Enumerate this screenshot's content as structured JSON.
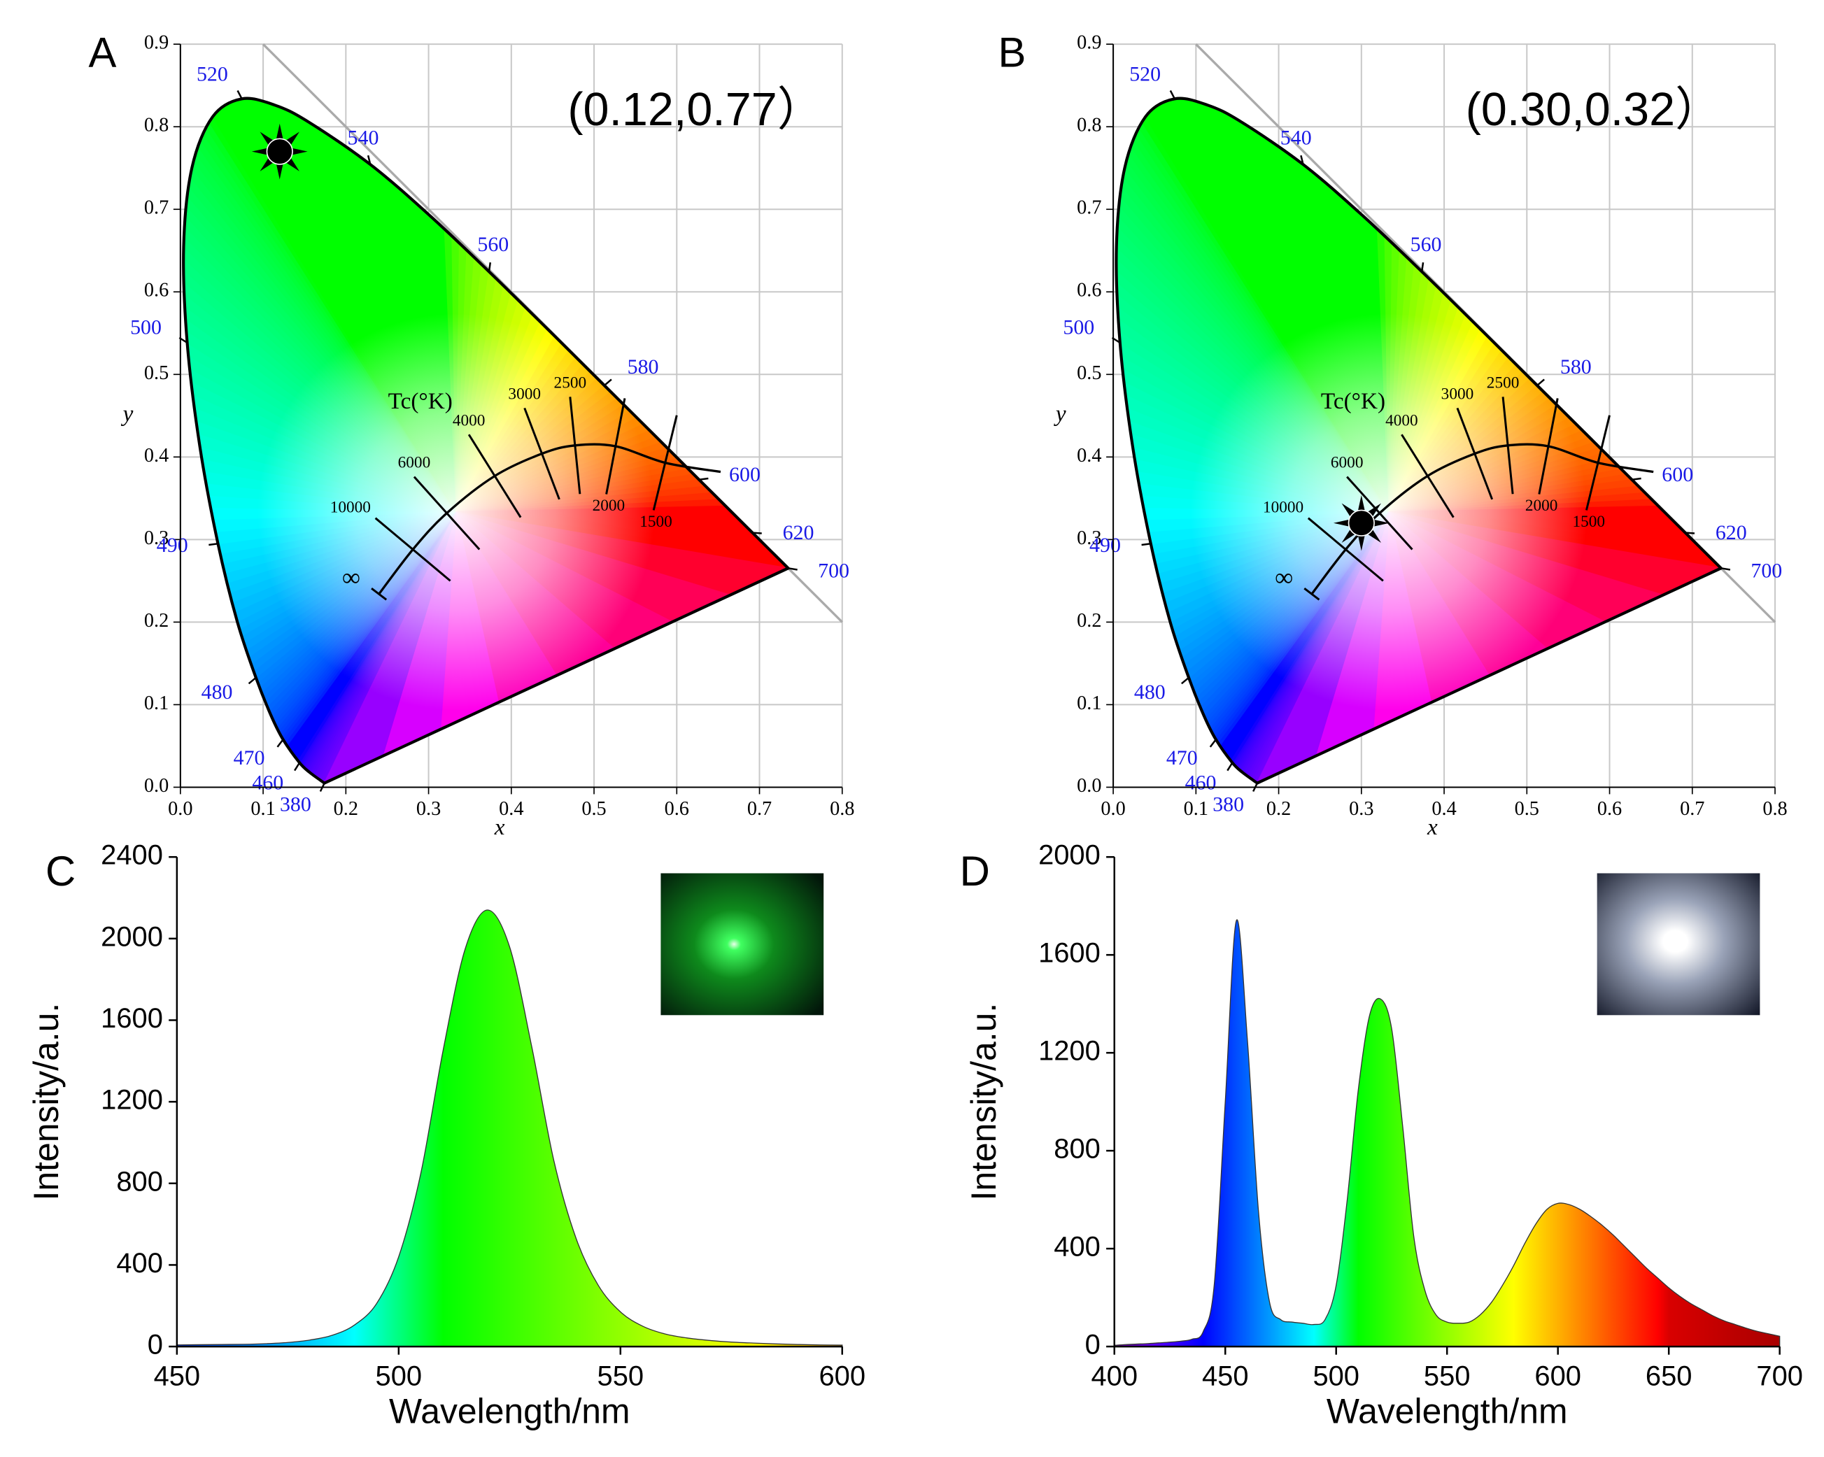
{
  "chart_data": [
    {
      "type": "cie",
      "label": "A",
      "annotation": "(0.12,0.77）",
      "xlabel": "x",
      "ylabel": "y",
      "xlim": [
        0,
        0.8
      ],
      "xticks": [
        {
          "value": 0,
          "label": "0.0"
        },
        0.1,
        0.2,
        0.3,
        0.4,
        0.5,
        0.6,
        0.7,
        0.8
      ],
      "ylim": [
        0,
        0.9
      ],
      "yticks": [
        {
          "value": 0,
          "label": "0.0"
        },
        0.1,
        0.2,
        0.3,
        0.4,
        0.5,
        0.6,
        0.7,
        0.8,
        0.9
      ],
      "grid": true,
      "locus": {
        "wavelengths": [
          380,
          null,
          460,
          470,
          null,
          480,
          null,
          490,
          null,
          500,
          null,
          null,
          null,
          520,
          null,
          null,
          540,
          null,
          560,
          null,
          580,
          null,
          600,
          620,
          null,
          700
        ],
        "x": [
          0.1741,
          0.1566,
          0.144,
          0.1241,
          0.1096,
          0.0913,
          0.0687,
          0.0454,
          0.0235,
          0.0082,
          0.0039,
          0.0139,
          0.0389,
          0.0743,
          0.1142,
          0.1547,
          0.2296,
          0.3016,
          0.3731,
          0.4441,
          0.5125,
          0.5752,
          0.627,
          0.6915,
          0.719,
          0.7347
        ],
        "y": [
          0.005,
          0.0177,
          0.0297,
          0.0578,
          0.0868,
          0.1327,
          0.2007,
          0.295,
          0.4127,
          0.5384,
          0.6548,
          0.7502,
          0.812,
          0.8338,
          0.8262,
          0.8059,
          0.7543,
          0.6923,
          0.6245,
          0.5547,
          0.4866,
          0.4242,
          0.3725,
          0.3083,
          0.2809,
          0.2653
        ]
      },
      "planck": {
        "title": "Tc(°K)",
        "labels": [
          "∞",
          "10000",
          "6000",
          "4000",
          "3000",
          "2500",
          "2000",
          "1500",
          null
        ],
        "x": [
          0.24,
          0.281,
          0.322,
          0.38,
          0.437,
          0.477,
          0.526,
          0.586,
          0.653
        ],
        "y": [
          0.234,
          0.288,
          0.332,
          0.377,
          0.404,
          0.414,
          0.413,
          0.393,
          0.382
        ]
      },
      "point": {
        "x": 0.12,
        "y": 0.77
      }
    },
    {
      "type": "cie",
      "label": "B",
      "annotation": "(0.30,0.32）",
      "xlabel": "x",
      "ylabel": "y",
      "xlim": [
        0,
        0.8
      ],
      "xticks": [
        {
          "value": 0,
          "label": "0.0"
        },
        0.1,
        0.2,
        0.3,
        0.4,
        0.5,
        0.6,
        0.7,
        0.8
      ],
      "ylim": [
        0,
        0.9
      ],
      "yticks": [
        {
          "value": 0,
          "label": "0.0"
        },
        0.1,
        0.2,
        0.3,
        0.4,
        0.5,
        0.6,
        0.7,
        0.8,
        0.9
      ],
      "grid": true,
      "locus": {
        "wavelengths": [
          380,
          null,
          460,
          470,
          null,
          480,
          null,
          490,
          null,
          500,
          null,
          null,
          null,
          520,
          null,
          null,
          540,
          null,
          560,
          null,
          580,
          null,
          600,
          620,
          null,
          700
        ],
        "x": [
          0.1741,
          0.1566,
          0.144,
          0.1241,
          0.1096,
          0.0913,
          0.0687,
          0.0454,
          0.0235,
          0.0082,
          0.0039,
          0.0139,
          0.0389,
          0.0743,
          0.1142,
          0.1547,
          0.2296,
          0.3016,
          0.3731,
          0.4441,
          0.5125,
          0.5752,
          0.627,
          0.6915,
          0.719,
          0.7347
        ],
        "y": [
          0.005,
          0.0177,
          0.0297,
          0.0578,
          0.0868,
          0.1327,
          0.2007,
          0.295,
          0.4127,
          0.5384,
          0.6548,
          0.7502,
          0.812,
          0.8338,
          0.8262,
          0.8059,
          0.7543,
          0.6923,
          0.6245,
          0.5547,
          0.4866,
          0.4242,
          0.3725,
          0.3083,
          0.2809,
          0.2653
        ]
      },
      "planck": {
        "title": "Tc(°K)",
        "labels": [
          "∞",
          "10000",
          "6000",
          "4000",
          "3000",
          "2500",
          "2000",
          "1500",
          null
        ],
        "x": [
          0.24,
          0.281,
          0.322,
          0.38,
          0.437,
          0.477,
          0.526,
          0.586,
          0.653
        ],
        "y": [
          0.234,
          0.288,
          0.332,
          0.377,
          0.404,
          0.414,
          0.413,
          0.393,
          0.382
        ]
      },
      "point": {
        "x": 0.3,
        "y": 0.32
      }
    },
    {
      "type": "spectrum",
      "label": "C",
      "xlabel": "Wavelength/nm",
      "ylabel": "Intensity/a.u.",
      "xlim": [
        450,
        600
      ],
      "xticks": [
        450,
        500,
        550,
        600
      ],
      "ylim": [
        0,
        2400
      ],
      "yticks": [
        0,
        400,
        800,
        1200,
        1600,
        2000,
        2400
      ],
      "x": [
        450,
        455,
        460,
        465,
        470,
        475,
        480,
        485,
        490,
        495,
        500,
        505,
        510,
        515,
        520,
        525,
        530,
        535,
        540,
        545,
        550,
        555,
        560,
        565,
        570,
        575,
        580,
        585,
        590,
        595,
        600
      ],
      "values": [
        8,
        9,
        10,
        11,
        14,
        20,
        32,
        55,
        105,
        210,
        440,
        850,
        1450,
        1950,
        2140,
        1960,
        1470,
        910,
        530,
        300,
        170,
        100,
        62,
        42,
        30,
        22,
        17,
        13,
        10,
        8,
        7
      ]
    },
    {
      "type": "spectrum",
      "label": "D",
      "xlabel": "Wavelength/nm",
      "ylabel": "Intensity/a.u.",
      "xlim": [
        400,
        700
      ],
      "xticks": [
        400,
        450,
        500,
        550,
        600,
        650,
        700
      ],
      "ylim": [
        0,
        2000
      ],
      "yticks": [
        0,
        400,
        800,
        1200,
        1600,
        2000
      ],
      "x": [
        400,
        405,
        410,
        415,
        420,
        425,
        430,
        435,
        440,
        445,
        450,
        455,
        460,
        465,
        470,
        475,
        480,
        485,
        490,
        495,
        500,
        505,
        510,
        515,
        520,
        525,
        530,
        535,
        540,
        545,
        550,
        555,
        560,
        565,
        570,
        575,
        580,
        585,
        590,
        595,
        600,
        605,
        610,
        615,
        620,
        625,
        630,
        635,
        640,
        645,
        650,
        655,
        660,
        665,
        670,
        675,
        680,
        685,
        690,
        695,
        700
      ],
      "values": [
        5,
        8,
        10,
        12,
        15,
        18,
        22,
        30,
        60,
        250,
        1000,
        1740,
        1250,
        550,
        180,
        110,
        100,
        95,
        90,
        110,
        250,
        600,
        1050,
        1350,
        1420,
        1300,
        900,
        450,
        230,
        130,
        100,
        95,
        100,
        130,
        180,
        250,
        330,
        420,
        500,
        560,
        585,
        580,
        560,
        530,
        495,
        455,
        410,
        365,
        320,
        280,
        240,
        205,
        175,
        150,
        125,
        105,
        90,
        75,
        62,
        52,
        42
      ]
    }
  ]
}
